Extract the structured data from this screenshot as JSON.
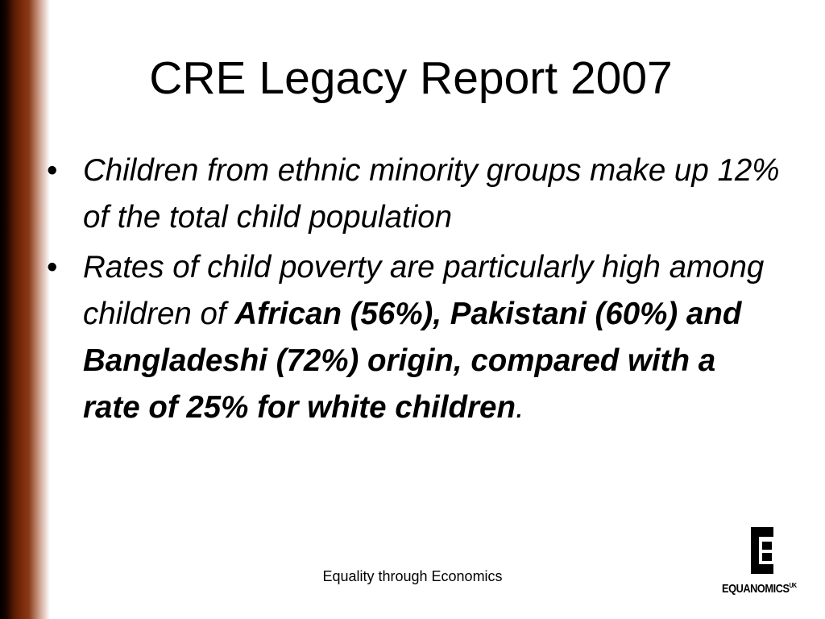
{
  "title": "CRE Legacy Report 2007",
  "bullets": [
    {
      "parts": [
        "Children from ethnic minority groups make up 12% of the total child population"
      ]
    },
    {
      "parts": [
        "Rates of child poverty are particularly high among children of ",
        "African (56%), Pakistani (60%) and Bangladeshi (72%) origin, compared with a rate of 25% for white children",
        "."
      ]
    }
  ],
  "footer": "Equality through Economics",
  "logo": {
    "name": "EQUANOMICS",
    "suffix": "UK"
  }
}
